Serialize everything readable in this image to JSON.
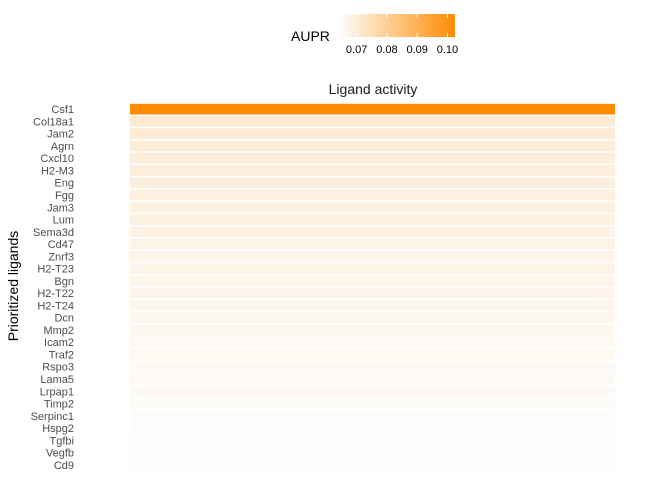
{
  "chart_data": {
    "type": "heatmap",
    "facet_title": "Ligand activity",
    "ylabel": "Prioritized ligands",
    "legend": {
      "title": "AUPR",
      "ticks": [
        0.07,
        0.08,
        0.09,
        0.1
      ],
      "tick_labels": [
        "0.07",
        "0.08",
        "0.09",
        "0.10"
      ],
      "range": [
        0.0645,
        0.1025
      ],
      "placement": "top"
    },
    "colors": {
      "low": "#fdfdfd",
      "high": "#ff8c00"
    },
    "ligands": [
      "Csf1",
      "Col18a1",
      "Jam2",
      "Agrn",
      "Cxcl10",
      "H2-M3",
      "Eng",
      "Fgg",
      "Jam3",
      "Lum",
      "Sema3d",
      "Cd47",
      "Znrf3",
      "H2-T23",
      "Bgn",
      "H2-T22",
      "H2-T24",
      "Dcn",
      "Mmp2",
      "Icam2",
      "Traf2",
      "Rspo3",
      "Lama5",
      "Lrpap1",
      "Timp2",
      "Serpinc1",
      "Hspg2",
      "Tgfbi",
      "Vegfb",
      "Cd9"
    ],
    "values": [
      0.1025,
      0.071,
      0.0705,
      0.07,
      0.0698,
      0.0695,
      0.0693,
      0.069,
      0.0688,
      0.0685,
      0.0683,
      0.068,
      0.0678,
      0.0675,
      0.0673,
      0.0671,
      0.0669,
      0.0667,
      0.0665,
      0.0663,
      0.0661,
      0.0659,
      0.0657,
      0.0655,
      0.0653,
      0.0651,
      0.065,
      0.0648,
      0.0646,
      0.0645
    ]
  }
}
